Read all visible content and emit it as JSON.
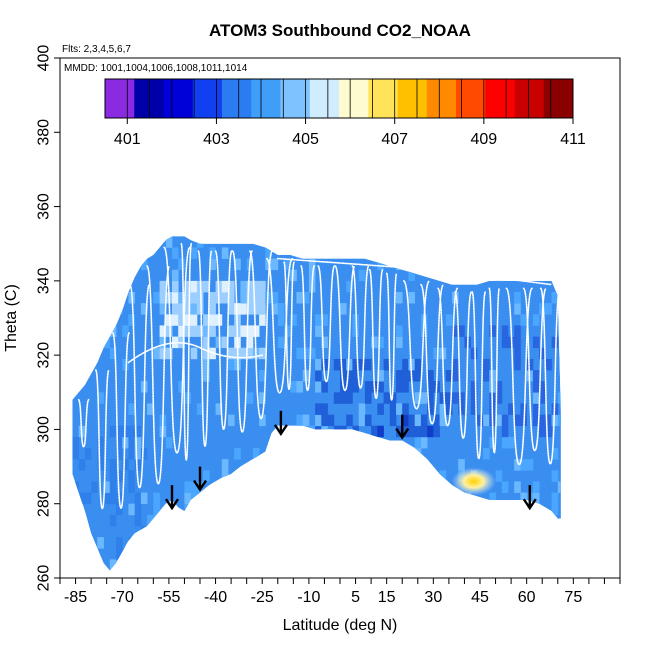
{
  "chart_data": {
    "type": "heatmap",
    "title": "ATOM3 Southbound CO2_NOAA",
    "notes": {
      "flights": "Flts: 2,3,4,5,6,7",
      "dates": "MMDD: 1001,1004,1006,1008,1011,1014"
    },
    "xlabel": "Latitude (deg N)",
    "ylabel": "Theta (C)",
    "xlim": [
      -90,
      90
    ],
    "ylim": [
      260,
      400
    ],
    "x_ticks": [
      -85,
      -70,
      -55,
      -40,
      -25,
      -10,
      5,
      15,
      30,
      45,
      60,
      75
    ],
    "y_ticks": [
      260,
      280,
      300,
      320,
      340,
      360,
      380,
      400
    ],
    "colorbar": {
      "range": [
        400.5,
        411
      ],
      "ticks": [
        401,
        403,
        405,
        407,
        409,
        411
      ],
      "colors": [
        "#8a2be2",
        "#0000a8",
        "#0000d8",
        "#1040f0",
        "#2b7cf0",
        "#3f9ef8",
        "#7ec2ff",
        "#d0ecff",
        "#fffbd0",
        "#ffe45a",
        "#ffc000",
        "#ff8a00",
        "#ff4a00",
        "#ff0000",
        "#c80000",
        "#8a0000"
      ]
    },
    "outline": {
      "lat": [
        -86,
        -84,
        -82,
        -80,
        -78,
        -76,
        -74,
        -72,
        -70,
        -68,
        -66,
        -64,
        -62,
        -60,
        -58,
        -56,
        -54,
        -52,
        -50,
        -48,
        -45,
        -42,
        -40,
        -38,
        -35,
        -32,
        -28,
        -24,
        -22,
        -20,
        -16,
        -12,
        -8,
        -4,
        0,
        4,
        8,
        12,
        16,
        20,
        24,
        28,
        32,
        36,
        40,
        44,
        48,
        52,
        56,
        60,
        64,
        68,
        70,
        71
      ],
      "theta_top": [
        308,
        310,
        312,
        315,
        318,
        322,
        325,
        328,
        332,
        337,
        341,
        344,
        346,
        347,
        349,
        351,
        352,
        352,
        352,
        351,
        350,
        350,
        350,
        350,
        350,
        350,
        350,
        349,
        348,
        347,
        347,
        346,
        346,
        346,
        346,
        346,
        346,
        345,
        344,
        343,
        342,
        341,
        340,
        339,
        339,
        339,
        340,
        340,
        340,
        340,
        340,
        340,
        336,
        305
      ],
      "theta_bottom": [
        288,
        283,
        278,
        272,
        268,
        264,
        262,
        264,
        267,
        270,
        272,
        273,
        274,
        276,
        278,
        280,
        281,
        279,
        278,
        281,
        283,
        285,
        286,
        287,
        288,
        290,
        292,
        294,
        299,
        301,
        301,
        301,
        300,
        300,
        300,
        300,
        299,
        298,
        297,
        297,
        295,
        292,
        288,
        285,
        283,
        282,
        281,
        281,
        281,
        281,
        280,
        278,
        276,
        276
      ]
    },
    "anomaly": {
      "lat": 43,
      "theta": 286,
      "value": 407.5
    },
    "arrows": [
      {
        "lat": -54,
        "theta": 285
      },
      {
        "lat": -45,
        "theta": 290
      },
      {
        "lat": -19,
        "theta": 305
      },
      {
        "lat": 20,
        "theta": 304
      },
      {
        "lat": 61,
        "theta": 285
      }
    ]
  }
}
